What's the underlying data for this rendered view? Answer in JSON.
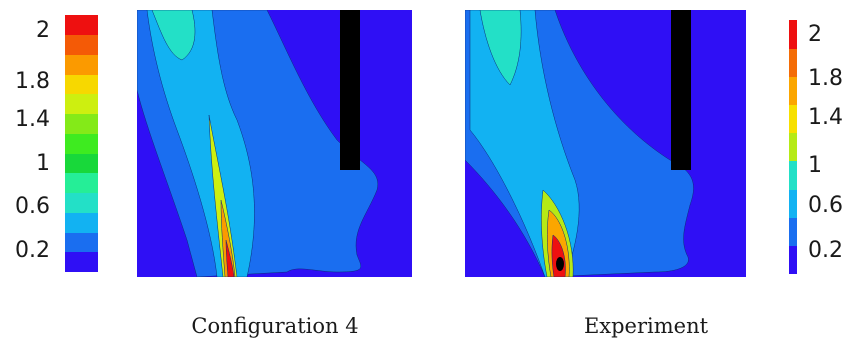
{
  "chart_data": [
    {
      "type": "heatmap",
      "caption": "Configuration 4",
      "colorbar": {
        "ticks": [
          "2",
          "1.8",
          "1.4",
          "1",
          "0.6",
          "0.2"
        ],
        "levels": [
          "#2f0ff5",
          "#1a6ef0",
          "#12b2f2",
          "#23e0c7",
          "#25ee97",
          "#18d83a",
          "#3eeb20",
          "#84ea18",
          "#cdef10",
          "#f7d800",
          "#fb9a00",
          "#f45a06",
          "#ee1010"
        ],
        "range": [
          0,
          2.1
        ]
      }
    },
    {
      "type": "heatmap",
      "caption": "Experiment",
      "colorbar": {
        "ticks": [
          "2",
          "1.8",
          "1.4",
          "1",
          "0.6",
          "0.2"
        ],
        "levels": [
          "#2f0ff5",
          "#1a6ef0",
          "#12b2f2",
          "#23e0c7",
          "#b6ea16",
          "#f7e000",
          "#fba600",
          "#f46c06",
          "#ee1010"
        ],
        "range": [
          0,
          2.1
        ]
      }
    }
  ],
  "colors": {
    "background_level": "#2f0ff5",
    "obstacle": "#000000"
  }
}
